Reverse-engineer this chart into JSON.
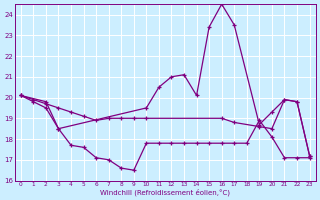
{
  "xlabel": "Windchill (Refroidissement éolien,°C)",
  "bg_color": "#cceeff",
  "grid_color": "#ffffff",
  "line_color": "#800080",
  "xlim": [
    -0.5,
    23.5
  ],
  "ylim": [
    16,
    24.5
  ],
  "xticks": [
    0,
    1,
    2,
    3,
    4,
    5,
    6,
    7,
    8,
    9,
    10,
    11,
    12,
    13,
    14,
    15,
    16,
    17,
    18,
    19,
    20,
    21,
    22,
    23
  ],
  "yticks": [
    16,
    17,
    18,
    19,
    20,
    21,
    22,
    23,
    24
  ],
  "series_spike_x": [
    0,
    2,
    3,
    10,
    11,
    12,
    13,
    14,
    15,
    16,
    17,
    19,
    20,
    21,
    22,
    23
  ],
  "series_spike_y": [
    20.1,
    19.8,
    18.5,
    19.5,
    20.5,
    21.0,
    21.1,
    20.1,
    23.4,
    24.5,
    23.5,
    18.7,
    19.3,
    19.9,
    19.8,
    17.2
  ],
  "series_flat_x": [
    0,
    1,
    2,
    3,
    4,
    5,
    6,
    7,
    8,
    9,
    10,
    16,
    17,
    19,
    20,
    21,
    22,
    23
  ],
  "series_flat_y": [
    20.1,
    19.9,
    19.7,
    19.5,
    19.3,
    19.1,
    18.9,
    19.0,
    19.0,
    19.0,
    19.0,
    19.0,
    18.8,
    18.6,
    18.5,
    19.9,
    19.8,
    17.2
  ],
  "series_low_x": [
    0,
    1,
    2,
    3,
    4,
    5,
    6,
    7,
    8,
    9,
    10,
    11,
    12,
    13,
    14,
    15,
    16,
    17,
    18,
    19,
    20,
    21,
    22,
    23
  ],
  "series_low_y": [
    20.1,
    19.8,
    19.5,
    18.5,
    17.7,
    17.6,
    17.1,
    17.0,
    16.6,
    16.5,
    17.8,
    17.8,
    17.8,
    17.8,
    17.8,
    17.8,
    17.8,
    17.8,
    17.8,
    18.9,
    18.1,
    17.1,
    17.1,
    17.1
  ]
}
